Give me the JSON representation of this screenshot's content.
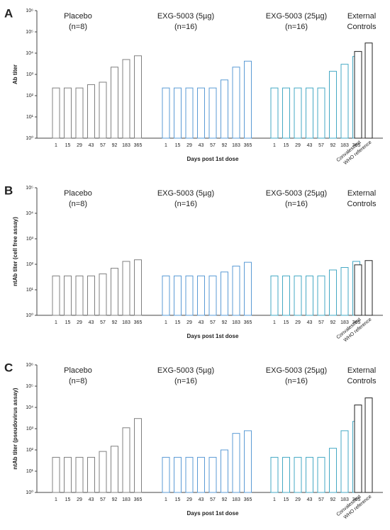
{
  "chart_data": [
    {
      "type": "bar",
      "panel_label": "A",
      "ylabel": "Ab titer",
      "xlabel": "Days post 1st dose",
      "log_scale": true,
      "ylim": [
        1,
        1000000
      ],
      "yticks": [
        {
          "value": 1,
          "label": "10⁰"
        },
        {
          "value": 10,
          "label": "10¹"
        },
        {
          "value": 100,
          "label": "10²"
        },
        {
          "value": 1000,
          "label": "10³"
        },
        {
          "value": 10000,
          "label": "10⁴"
        },
        {
          "value": 100000,
          "label": "10⁵"
        },
        {
          "value": 1000000,
          "label": "10⁶"
        }
      ],
      "series": [
        {
          "name": "Placebo",
          "subtitle": "(n=8)",
          "color": "#808080",
          "categories": [
            "1",
            "15",
            "29",
            "43",
            "57",
            "92",
            "183",
            "365"
          ],
          "values": [
            230,
            230,
            230,
            330,
            430,
            2200,
            5000,
            7500
          ]
        },
        {
          "name": "EXG-5003 (5µg)",
          "subtitle": "(n=16)",
          "color": "#5b9bd5",
          "categories": [
            "1",
            "15",
            "29",
            "43",
            "57",
            "92",
            "183",
            "365"
          ],
          "values": [
            230,
            230,
            230,
            230,
            230,
            550,
            2200,
            4200
          ]
        },
        {
          "name": "EXG-5003 (25µg)",
          "subtitle": "(n=16)",
          "color": "#45a9c4",
          "categories": [
            "1",
            "15",
            "29",
            "43",
            "57",
            "92",
            "183",
            "365"
          ],
          "values": [
            230,
            230,
            230,
            230,
            230,
            1400,
            3000,
            7000
          ]
        },
        {
          "name": "External",
          "subtitle": "Controls",
          "color": "#222222",
          "categories": [
            "Convalescent",
            "WHO reference"
          ],
          "values": [
            12000,
            30000
          ]
        }
      ]
    },
    {
      "type": "bar",
      "panel_label": "B",
      "ylabel": "ntAb titer (cell free assay)",
      "xlabel": "Days post 1st dose",
      "log_scale": true,
      "ylim": [
        1,
        100000
      ],
      "yticks": [
        {
          "value": 1,
          "label": "10⁰"
        },
        {
          "value": 10,
          "label": "10¹"
        },
        {
          "value": 100,
          "label": "10²"
        },
        {
          "value": 1000,
          "label": "10³"
        },
        {
          "value": 10000,
          "label": "10⁴"
        },
        {
          "value": 100000,
          "label": "10⁵"
        }
      ],
      "series": [
        {
          "name": "Placebo",
          "subtitle": "(n=8)",
          "color": "#808080",
          "categories": [
            "1",
            "15",
            "29",
            "43",
            "57",
            "92",
            "183",
            "365"
          ],
          "values": [
            35,
            35,
            35,
            35,
            42,
            70,
            130,
            150
          ]
        },
        {
          "name": "EXG-5003 (5µg)",
          "subtitle": "(n=16)",
          "color": "#5b9bd5",
          "categories": [
            "1",
            "15",
            "29",
            "43",
            "57",
            "92",
            "183",
            "365"
          ],
          "values": [
            35,
            35,
            35,
            35,
            35,
            50,
            85,
            120
          ]
        },
        {
          "name": "EXG-5003 (25µg)",
          "subtitle": "(n=16)",
          "color": "#45a9c4",
          "categories": [
            "1",
            "15",
            "29",
            "43",
            "57",
            "92",
            "183",
            "365"
          ],
          "values": [
            35,
            35,
            35,
            35,
            35,
            60,
            75,
            130
          ]
        },
        {
          "name": "External",
          "subtitle": "Controls",
          "color": "#222222",
          "categories": [
            "Convalescent",
            "WHO reference"
          ],
          "values": [
            95,
            140
          ]
        }
      ]
    },
    {
      "type": "bar",
      "panel_label": "C",
      "ylabel": "ntAb titer (pseudovirus assay)",
      "xlabel": "Days post 1st dose",
      "log_scale": true,
      "ylim": [
        1,
        1000000
      ],
      "yticks": [
        {
          "value": 1,
          "label": "10⁰"
        },
        {
          "value": 10,
          "label": "10¹"
        },
        {
          "value": 100,
          "label": "10²"
        },
        {
          "value": 1000,
          "label": "10³"
        },
        {
          "value": 10000,
          "label": "10⁴"
        },
        {
          "value": 100000,
          "label": "10⁵"
        },
        {
          "value": 1000000,
          "label": "10⁶"
        }
      ],
      "series": [
        {
          "name": "Placebo",
          "subtitle": "(n=8)",
          "color": "#808080",
          "categories": [
            "1",
            "15",
            "29",
            "43",
            "57",
            "92",
            "183",
            "365"
          ],
          "values": [
            45,
            45,
            45,
            45,
            85,
            150,
            1100,
            3000
          ]
        },
        {
          "name": "EXG-5003 (5µg)",
          "subtitle": "(n=16)",
          "color": "#5b9bd5",
          "categories": [
            "1",
            "15",
            "29",
            "43",
            "57",
            "92",
            "183",
            "365"
          ],
          "values": [
            45,
            45,
            45,
            45,
            45,
            100,
            600,
            800
          ]
        },
        {
          "name": "EXG-5003 (25µg)",
          "subtitle": "(n=16)",
          "color": "#45a9c4",
          "categories": [
            "1",
            "15",
            "29",
            "43",
            "57",
            "92",
            "183",
            "365"
          ],
          "values": [
            45,
            45,
            45,
            45,
            45,
            120,
            800,
            2200
          ]
        },
        {
          "name": "External",
          "subtitle": "Controls",
          "color": "#222222",
          "categories": [
            "Convalescent",
            "WHO reference"
          ],
          "values": [
            13000,
            28000
          ]
        }
      ]
    }
  ]
}
